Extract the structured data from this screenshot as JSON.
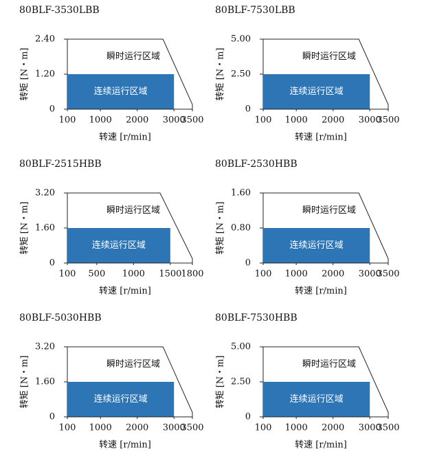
{
  "chart_data": [
    {
      "type": "area",
      "title": "80BLF-3530LBB",
      "xlabel": "转速 [r/min]",
      "ylabel": "转矩 [N・m]",
      "xlim": [
        100,
        3500
      ],
      "xticks": [
        100,
        1000,
        2000,
        3000,
        3500
      ],
      "ylim": [
        0,
        2.4
      ],
      "yticks": [
        0,
        {
          "value": 1.2,
          "label": "1.20"
        },
        {
          "value": 2.4,
          "label": "2.40"
        }
      ],
      "series": [
        {
          "name": "瞬时运行区域",
          "color": "#ffffff",
          "x": [
            100,
            100,
            2700,
            3500,
            3500
          ],
          "values": [
            0,
            2.4,
            2.4,
            0.16,
            0
          ]
        },
        {
          "name": "连续运行区域",
          "color": "#2e75b6",
          "x": [
            100,
            3000
          ],
          "values": [
            1.2,
            1.2
          ]
        }
      ]
    },
    {
      "type": "area",
      "title": "80BLF-7530LBB",
      "xlabel": "转速 [r/min]",
      "ylabel": "转矩 [N・m]",
      "xlim": [
        100,
        3500
      ],
      "xticks": [
        100,
        1000,
        2000,
        3000,
        3500
      ],
      "ylim": [
        0,
        5
      ],
      "yticks": [
        0,
        {
          "value": 2.5,
          "label": "2.50"
        },
        {
          "value": 5,
          "label": "5.00"
        }
      ],
      "series": [
        {
          "name": "瞬时运行区域",
          "color": "#ffffff",
          "x": [
            100,
            100,
            2700,
            3500,
            3500
          ],
          "values": [
            0,
            5,
            5,
            0.33,
            0
          ]
        },
        {
          "name": "连续运行区域",
          "color": "#2e75b6",
          "x": [
            100,
            3000
          ],
          "values": [
            2.5,
            2.5
          ]
        }
      ]
    },
    {
      "type": "area",
      "title": "80BLF-2515HBB",
      "xlabel": "转速 [r/min]",
      "ylabel": "转矩 [N・m]",
      "xlim": [
        100,
        1800
      ],
      "xticks": [
        100,
        500,
        1000,
        1500,
        1800
      ],
      "ylim": [
        0,
        3.2
      ],
      "yticks": [
        0,
        {
          "value": 1.6,
          "label": "1.60"
        },
        {
          "value": 3.2,
          "label": "3.20"
        }
      ],
      "series": [
        {
          "name": "瞬时运行区域",
          "color": "#ffffff",
          "x": [
            100,
            100,
            1360,
            1800,
            1800
          ],
          "values": [
            0,
            3.2,
            3.2,
            0.2,
            0
          ]
        },
        {
          "name": "连续运行区域",
          "color": "#2e75b6",
          "x": [
            100,
            1500
          ],
          "values": [
            1.6,
            1.6
          ]
        }
      ]
    },
    {
      "type": "area",
      "title": "80BLF-2530HBB",
      "xlabel": "转速 [r/min]",
      "ylabel": "转矩 [N・m]",
      "xlim": [
        100,
        3500
      ],
      "xticks": [
        100,
        1000,
        2000,
        3000,
        3500
      ],
      "ylim": [
        0,
        1.6
      ],
      "yticks": [
        0,
        {
          "value": 0.8,
          "label": "0.80"
        },
        {
          "value": 1.6,
          "label": "1.60"
        }
      ],
      "series": [
        {
          "name": "瞬时运行区域",
          "color": "#ffffff",
          "x": [
            100,
            100,
            2700,
            3500,
            3500
          ],
          "values": [
            0,
            1.6,
            1.6,
            0.1,
            0
          ]
        },
        {
          "name": "连续运行区域",
          "color": "#2e75b6",
          "x": [
            100,
            3000
          ],
          "values": [
            0.8,
            0.8
          ]
        }
      ]
    },
    {
      "type": "area",
      "title": "80BLF-5030HBB",
      "xlabel": "转速 [r/min]",
      "ylabel": "转矩 [N・m]",
      "xlim": [
        100,
        3500
      ],
      "xticks": [
        100,
        1000,
        2000,
        3000,
        3500
      ],
      "ylim": [
        0,
        3.2
      ],
      "yticks": [
        0,
        {
          "value": 1.6,
          "label": "1.60"
        },
        {
          "value": 3.2,
          "label": "3.20"
        }
      ],
      "series": [
        {
          "name": "瞬时运行区域",
          "color": "#ffffff",
          "x": [
            100,
            100,
            2700,
            3500,
            3500
          ],
          "values": [
            0,
            3.2,
            3.2,
            0.2,
            0
          ]
        },
        {
          "name": "连续运行区域",
          "color": "#2e75b6",
          "x": [
            100,
            3000
          ],
          "values": [
            1.6,
            1.6
          ]
        }
      ]
    },
    {
      "type": "area",
      "title": "80BLF-7530HBB",
      "xlabel": "转速 [r/min]",
      "ylabel": "转矩 [N・m]",
      "xlim": [
        100,
        3500
      ],
      "xticks": [
        100,
        1000,
        2000,
        3000,
        3500
      ],
      "ylim": [
        0,
        5
      ],
      "yticks": [
        0,
        {
          "value": 2.5,
          "label": "2.50"
        },
        {
          "value": 5,
          "label": "5.00"
        }
      ],
      "series": [
        {
          "name": "瞬时运行区域",
          "color": "#ffffff",
          "x": [
            100,
            100,
            2700,
            3500,
            3500
          ],
          "values": [
            0,
            5,
            5,
            0.33,
            0
          ]
        },
        {
          "name": "连续运行区域",
          "color": "#2e75b6",
          "x": [
            100,
            3000
          ],
          "values": [
            2.5,
            2.5
          ]
        }
      ]
    }
  ]
}
